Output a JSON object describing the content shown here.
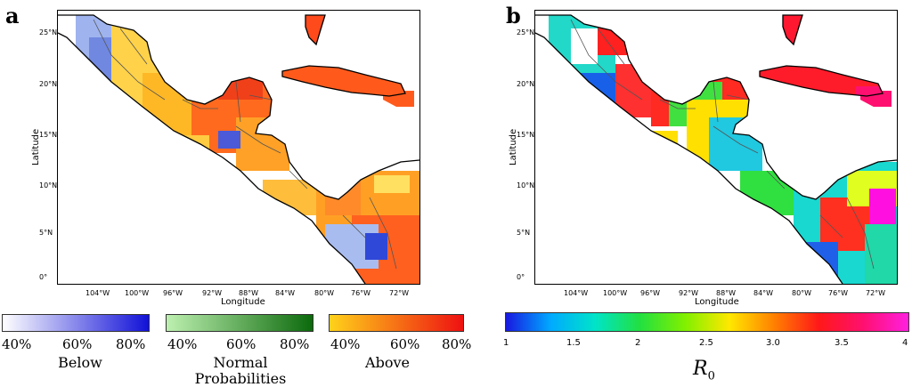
{
  "panels": [
    {
      "letter": "a",
      "ylabel": "Latitude",
      "xlabel": "Longitude",
      "yticks": [
        "25°N",
        "20°N",
        "15°N",
        "10°N",
        "5°N",
        "0°"
      ],
      "xticks": [
        "104°W",
        "100°W",
        "96°W",
        "92°W",
        "88°W",
        "84°W",
        "80°W",
        "76°W",
        "72°W"
      ]
    },
    {
      "letter": "b",
      "ylabel": "Latitude",
      "xlabel": "Longitude",
      "yticks": [
        "25°N",
        "20°N",
        "15°N",
        "10°N",
        "5°N",
        "0°"
      ],
      "xticks": [
        "104°W",
        "100°W",
        "96°W",
        "92°W",
        "88°W",
        "84°W",
        "80°W",
        "76°W",
        "72°W"
      ]
    }
  ],
  "legend_a": {
    "groups": [
      {
        "name": "Below",
        "ticks": [
          "40%",
          "60%",
          "80%"
        ],
        "color_from": "#ffffff",
        "color_to": "#1111d8"
      },
      {
        "name": "Normal\nProbabilities",
        "ticks": [
          "40%",
          "60%",
          "80%"
        ],
        "color_from": "#bdf0b0",
        "color_to": "#0c6a0c"
      },
      {
        "name": "Above",
        "ticks": [
          "40%",
          "60%",
          "80%"
        ],
        "color_from": "#ffd21a",
        "color_to": "#ee1111"
      }
    ]
  },
  "legend_b": {
    "ticks": [
      "1",
      "1.5",
      "2",
      "2.5",
      "3.0",
      "3.5",
      "4"
    ],
    "label_symbol": "R",
    "label_sub": "0",
    "colors": [
      "#1818e0",
      "#00aaff",
      "#00e4c8",
      "#22e040",
      "#80f000",
      "#ffe800",
      "#ff8000",
      "#ff1818",
      "#ff1070",
      "#ff20e0"
    ]
  }
}
